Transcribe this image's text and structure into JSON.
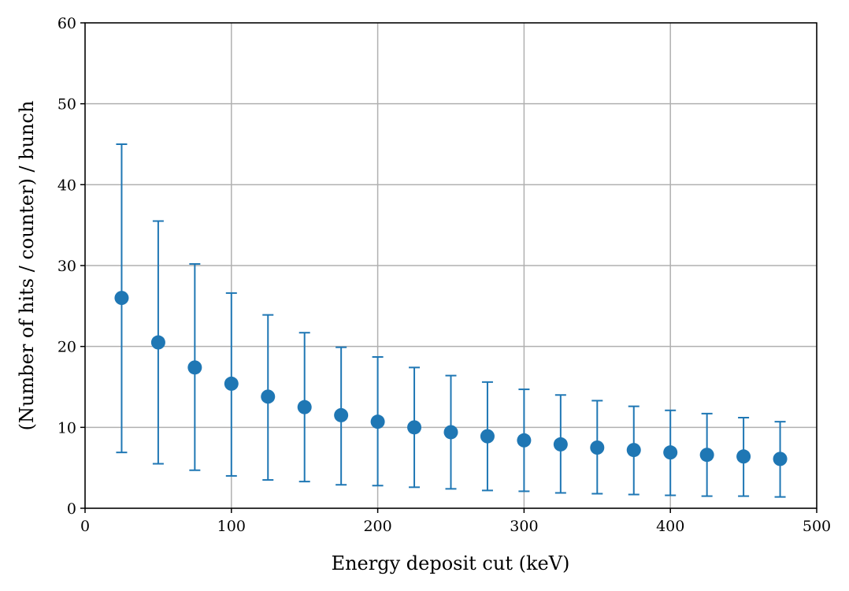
{
  "chart_data": {
    "type": "scatter",
    "title": "",
    "xlabel": "Energy deposit cut (keV)",
    "ylabel": "(Number of hits / counter) / bunch",
    "xlim": [
      0,
      500
    ],
    "ylim": [
      0,
      60
    ],
    "xticks": [
      0,
      100,
      200,
      300,
      400,
      500
    ],
    "yticks": [
      0,
      10,
      20,
      30,
      40,
      50,
      60
    ],
    "grid": true,
    "color": "#1f77b4",
    "series": [
      {
        "x": [
          25,
          50,
          75,
          100,
          125,
          150,
          175,
          200,
          225,
          250,
          275,
          300,
          325,
          350,
          375,
          400,
          425,
          450,
          475
        ],
        "y": [
          26.0,
          20.5,
          17.4,
          15.4,
          13.8,
          12.5,
          11.5,
          10.7,
          10.0,
          9.4,
          8.9,
          8.4,
          7.9,
          7.5,
          7.2,
          6.9,
          6.6,
          6.4,
          6.1
        ],
        "y_upper": [
          45.0,
          35.5,
          30.2,
          26.6,
          23.9,
          21.7,
          19.9,
          18.7,
          17.4,
          16.4,
          15.6,
          14.7,
          14.0,
          13.3,
          12.6,
          12.1,
          11.7,
          11.2,
          10.7
        ],
        "y_lower": [
          6.9,
          5.5,
          4.7,
          4.0,
          3.5,
          3.3,
          2.9,
          2.8,
          2.6,
          2.4,
          2.2,
          2.1,
          1.9,
          1.8,
          1.7,
          1.6,
          1.5,
          1.5,
          1.4
        ]
      }
    ]
  }
}
